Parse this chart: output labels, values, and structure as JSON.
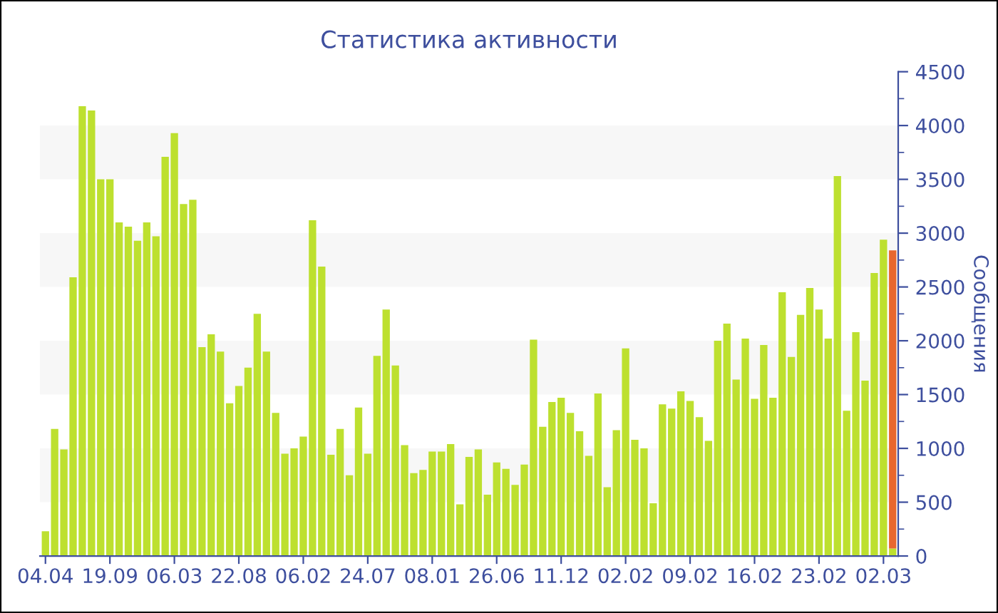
{
  "chart_data": {
    "type": "bar",
    "title": "Статистика активности",
    "ylabel": "Сообщения",
    "categories": [
      "04.04",
      null,
      null,
      null,
      null,
      null,
      null,
      "19.09",
      null,
      null,
      null,
      null,
      null,
      null,
      "06.03",
      null,
      null,
      null,
      null,
      null,
      null,
      "22.08",
      null,
      null,
      null,
      null,
      null,
      null,
      "06.02",
      null,
      null,
      null,
      null,
      null,
      null,
      "24.07",
      null,
      null,
      null,
      null,
      null,
      null,
      "08.01",
      null,
      null,
      null,
      null,
      null,
      null,
      "26.06",
      null,
      null,
      null,
      null,
      null,
      null,
      "11.12",
      null,
      null,
      null,
      null,
      null,
      null,
      "02.02",
      null,
      null,
      null,
      null,
      null,
      null,
      "09.02",
      null,
      null,
      null,
      null,
      null,
      null,
      "16.02",
      null,
      null,
      null,
      null,
      null,
      null,
      "23.02",
      null,
      null,
      null,
      null,
      null,
      null,
      "02.03",
      null
    ],
    "stacked": true,
    "series": [
      {
        "color": "#bde02f",
        "values": [
          230,
          1180,
          990,
          2590,
          4180,
          4140,
          3500,
          3500,
          3100,
          3060,
          2930,
          3100,
          2970,
          3710,
          3930,
          3270,
          3310,
          1940,
          2060,
          1900,
          1420,
          1580,
          1750,
          2250,
          1900,
          1330,
          950,
          1000,
          1110,
          3120,
          2690,
          940,
          1180,
          750,
          1380,
          950,
          1860,
          2290,
          1770,
          1030,
          770,
          800,
          970,
          970,
          1040,
          480,
          920,
          990,
          570,
          870,
          810,
          660,
          850,
          2010,
          1200,
          1430,
          1470,
          1330,
          1160,
          930,
          1510,
          640,
          1170,
          1930,
          1080,
          1000,
          490,
          1410,
          1370,
          1530,
          1440,
          1290,
          1070,
          2000,
          2160,
          1640,
          2020,
          1460,
          1960,
          1470,
          2450,
          1850,
          2240,
          2490,
          2290,
          2020,
          3530,
          1350,
          2080,
          1630,
          2630,
          2940,
          70
        ]
      },
      {
        "color": "#e8672e",
        "values": [
          null,
          null,
          null,
          null,
          null,
          null,
          null,
          null,
          null,
          null,
          null,
          null,
          null,
          null,
          null,
          null,
          null,
          null,
          null,
          null,
          null,
          null,
          null,
          null,
          null,
          null,
          null,
          null,
          null,
          null,
          null,
          null,
          null,
          null,
          null,
          null,
          null,
          null,
          null,
          null,
          null,
          null,
          null,
          null,
          null,
          null,
          null,
          null,
          null,
          null,
          null,
          null,
          null,
          null,
          null,
          null,
          null,
          null,
          null,
          null,
          null,
          null,
          null,
          null,
          null,
          null,
          null,
          null,
          null,
          null,
          null,
          null,
          null,
          null,
          null,
          null,
          null,
          null,
          null,
          null,
          null,
          null,
          null,
          null,
          null,
          null,
          null,
          null,
          null,
          null,
          null,
          null,
          2770
        ]
      }
    ],
    "ylim": [
      0,
      4500
    ],
    "yticks": [
      0,
      500,
      1000,
      1500,
      2000,
      2500,
      3000,
      3500,
      4000,
      4500
    ],
    "bands": [
      {
        "axis": "y",
        "from": 500,
        "to": 1000,
        "color": "#f7f7f7"
      },
      {
        "axis": "y",
        "from": 1500,
        "to": 2000,
        "color": "#f7f7f7"
      },
      {
        "axis": "y",
        "from": 2500,
        "to": 3000,
        "color": "#f7f7f7"
      },
      {
        "axis": "y",
        "from": 3500,
        "to": 4000,
        "color": "#f7f7f7"
      }
    ],
    "legend": false
  }
}
